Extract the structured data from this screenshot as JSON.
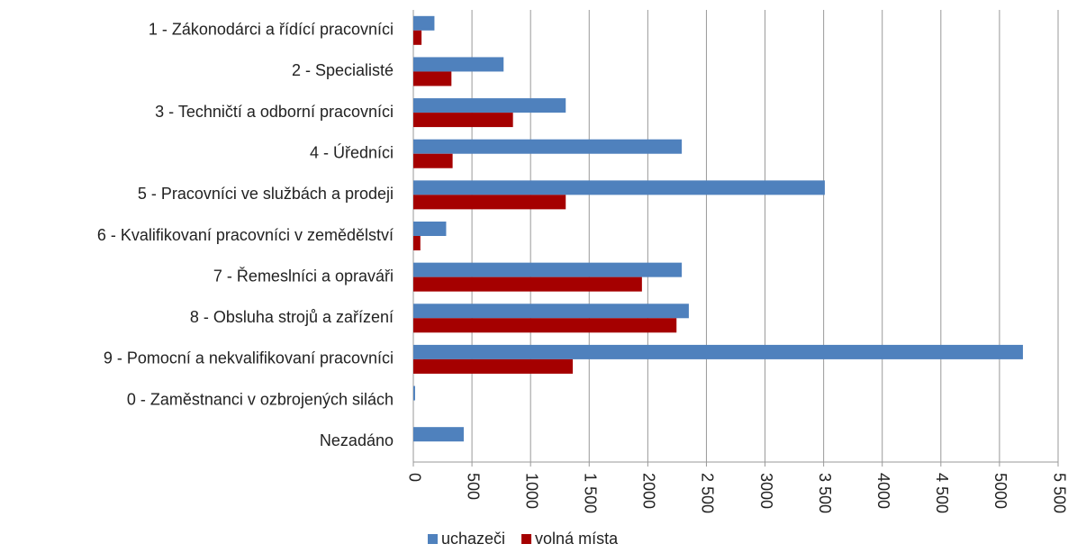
{
  "chart_data": {
    "type": "bar",
    "orientation": "horizontal",
    "categories": [
      "1 - Zákonodárci a řídící pracovníci",
      "2 - Specialisté",
      "3 - Techničtí a odborní pracovníci",
      "4 - Úředníci",
      "5 - Pracovníci ve službách a prodeji",
      "6 - Kvalifikovaní pracovníci v zemědělství",
      "7 - Řemeslníci a opraváři",
      "8 - Obsluha strojů a zařízení",
      "9 - Pomocní a nekvalifikovaní pracovníci",
      "0 - Zaměstnanci v ozbrojených silách",
      "Nezadáno"
    ],
    "series": [
      {
        "name": "uchazeči",
        "color": "#4f81bd",
        "values": [
          180,
          770,
          1300,
          2290,
          3510,
          280,
          2290,
          2350,
          5200,
          15,
          430
        ]
      },
      {
        "name": "volná místa",
        "color": "#a50000",
        "values": [
          70,
          325,
          850,
          335,
          1300,
          60,
          1950,
          2245,
          1360,
          0,
          0
        ]
      }
    ],
    "xlim": [
      0,
      5500
    ],
    "xticks": [
      0,
      500,
      1000,
      {
        "value": 1500,
        "label": "1 500"
      },
      2000,
      {
        "value": 2500,
        "label": "2 500"
      },
      3000,
      {
        "value": 3500,
        "label": "3 500"
      },
      4000,
      {
        "value": 4500,
        "label": "4 500"
      },
      5000,
      {
        "value": 5500,
        "label": "5 500"
      }
    ],
    "grid": true,
    "legend": "bottom"
  }
}
